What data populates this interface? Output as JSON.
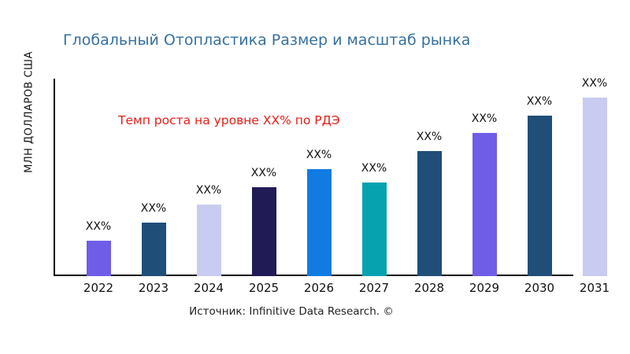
{
  "title": {
    "text": "Глобальный Отопластика Размер и масштаб рынка",
    "color": "#36719f"
  },
  "annotation": {
    "text": "Темп роста на уровне XX% по РДЭ",
    "color": "#e32019"
  },
  "source": {
    "text": "Источник: Infinitive Data Research. ©"
  },
  "chart_data": {
    "type": "bar",
    "title": "Глобальный Отопластика Размер и масштаб рынка",
    "ylabel": "МЛН ДОЛЛАРОВ США",
    "xlabel": "",
    "categories": [
      "2022",
      "2023",
      "2024",
      "2025",
      "2026",
      "2027",
      "2028",
      "2029",
      "2030",
      "2031"
    ],
    "values": [
      20,
      30,
      40,
      50,
      60,
      52.5,
      70,
      80,
      90,
      100
    ],
    "value_labels": [
      "XX%",
      "XX%",
      "XX%",
      "XX%",
      "XX%",
      "XX%",
      "XX%",
      "XX%",
      "XX%",
      "XX%"
    ],
    "bar_colors": [
      "#6f5de8",
      "#1f4e79",
      "#c9ccf0",
      "#201b54",
      "#127be1",
      "#07a2b0",
      "#1f4e79",
      "#6f5de8",
      "#1f4e79",
      "#c9ccf0"
    ],
    "ylim": [
      0,
      110
    ],
    "y_ticks": [],
    "grid": false,
    "legend": null,
    "annotation": "Темп роста на уровне XX% по РДЭ"
  }
}
